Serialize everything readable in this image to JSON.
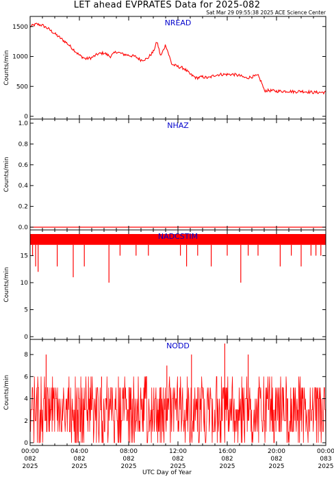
{
  "title": "LET ahead EVPRATES Data for 2025-082",
  "timestamp": "Sat Mar 29 09:55:38 2025 ACE Science Center",
  "x_axis_label": "UTC Day of Year",
  "x_ticks": [
    {
      "time": "00:00",
      "doy": "082",
      "year": "2025"
    },
    {
      "time": "04:00",
      "doy": "082",
      "year": "2025"
    },
    {
      "time": "08:00",
      "doy": "082",
      "year": "2025"
    },
    {
      "time": "12:00",
      "doy": "082",
      "year": "2025"
    },
    {
      "time": "16:00",
      "doy": "082",
      "year": "2025"
    },
    {
      "time": "20:00",
      "doy": "082",
      "year": "2025"
    },
    {
      "time": "00:00",
      "doy": "083",
      "year": "2025"
    }
  ],
  "colors": {
    "trace": "#ff0000",
    "panel_label": "#0000cc",
    "axes": "#000000"
  },
  "chart_data": [
    {
      "type": "line",
      "label": "NREAD",
      "ylabel": "Counts/min",
      "ylim": [
        0,
        1600
      ],
      "yticks": [
        0,
        500,
        1000,
        1500
      ],
      "ytick_labels": [
        "0",
        "500",
        "1000",
        "1500"
      ],
      "x_unit": "hours",
      "xlim": [
        0,
        24
      ],
      "x": [
        0,
        0.5,
        1,
        1.5,
        2,
        2.5,
        3,
        3.5,
        4,
        4.5,
        5,
        5.5,
        6,
        6.5,
        7,
        7.5,
        8,
        8.5,
        9,
        9.5,
        10,
        10.3,
        10.6,
        11,
        11.5,
        12,
        12.5,
        13,
        13.5,
        14,
        14.5,
        15,
        15.5,
        16,
        16.5,
        17,
        17.5,
        18,
        18.5,
        18.8,
        19,
        19.5,
        20,
        20.5,
        21,
        21.5,
        22,
        22.5,
        23,
        23.5,
        24
      ],
      "values": [
        1500,
        1540,
        1520,
        1460,
        1380,
        1300,
        1220,
        1120,
        1020,
        960,
        980,
        1040,
        1060,
        1000,
        1080,
        1040,
        1020,
        1000,
        940,
        960,
        1080,
        1250,
        1000,
        1200,
        870,
        830,
        800,
        700,
        640,
        660,
        640,
        690,
        700,
        700,
        700,
        680,
        640,
        660,
        680,
        560,
        430,
        430,
        420,
        420,
        420,
        410,
        420,
        410,
        400,
        400,
        400
      ],
      "noise": 25
    },
    {
      "type": "line",
      "label": "NHAZ",
      "ylabel": "Counts/min",
      "ylim": [
        0,
        1
      ],
      "yticks": [
        0,
        0.2,
        0.4,
        0.6,
        0.8,
        1.0
      ],
      "ytick_labels": [
        "0.0",
        "0.2",
        "0.4",
        "0.6",
        "0.8",
        "1.0"
      ],
      "x_unit": "hours",
      "xlim": [
        0,
        24
      ],
      "x": [
        0,
        24
      ],
      "values": [
        0,
        0
      ]
    },
    {
      "type": "line",
      "label": "NADCSTIM",
      "ylabel": "Counts/min",
      "ylim": [
        0,
        19
      ],
      "yticks": [
        0,
        5,
        10,
        15
      ],
      "ytick_labels": [
        "0",
        "5",
        "10",
        "15"
      ],
      "x_unit": "hours",
      "xlim": [
        0,
        24
      ],
      "band": [
        17,
        19
      ],
      "dips_x": [
        0.2,
        0.45,
        0.65,
        1.2,
        2.2,
        3.5,
        4.4,
        5.5,
        6.4,
        7.3,
        8.6,
        9.6,
        10.5,
        11.3,
        12.2,
        12.7,
        13.6,
        14.7,
        16.0,
        17.1,
        17.7,
        18.5,
        19.1,
        20.3,
        21.2,
        22.0,
        22.8,
        23.2,
        23.6
      ],
      "dips_y": [
        15,
        13,
        12,
        17,
        13,
        11,
        13,
        17,
        10,
        15,
        15,
        15,
        17,
        17,
        15,
        13,
        15,
        13,
        15,
        10,
        15,
        15,
        17,
        13,
        15,
        13,
        15,
        15,
        15
      ]
    },
    {
      "type": "line",
      "label": "NODD",
      "ylabel": "Counts/min",
      "ylim": [
        0,
        9
      ],
      "yticks": [
        0,
        2,
        4,
        6,
        8
      ],
      "ytick_labels": [
        "0",
        "2",
        "4",
        "6",
        "8"
      ],
      "x_unit": "hours",
      "xlim": [
        0,
        24
      ],
      "value_levels": [
        0,
        1,
        2,
        3,
        4,
        5,
        6
      ],
      "peaks_x": [
        1.3,
        15.8,
        13.1,
        17.7,
        11.1,
        5.8
      ],
      "peaks_y": [
        8,
        9,
        8,
        8,
        7,
        6
      ]
    }
  ]
}
